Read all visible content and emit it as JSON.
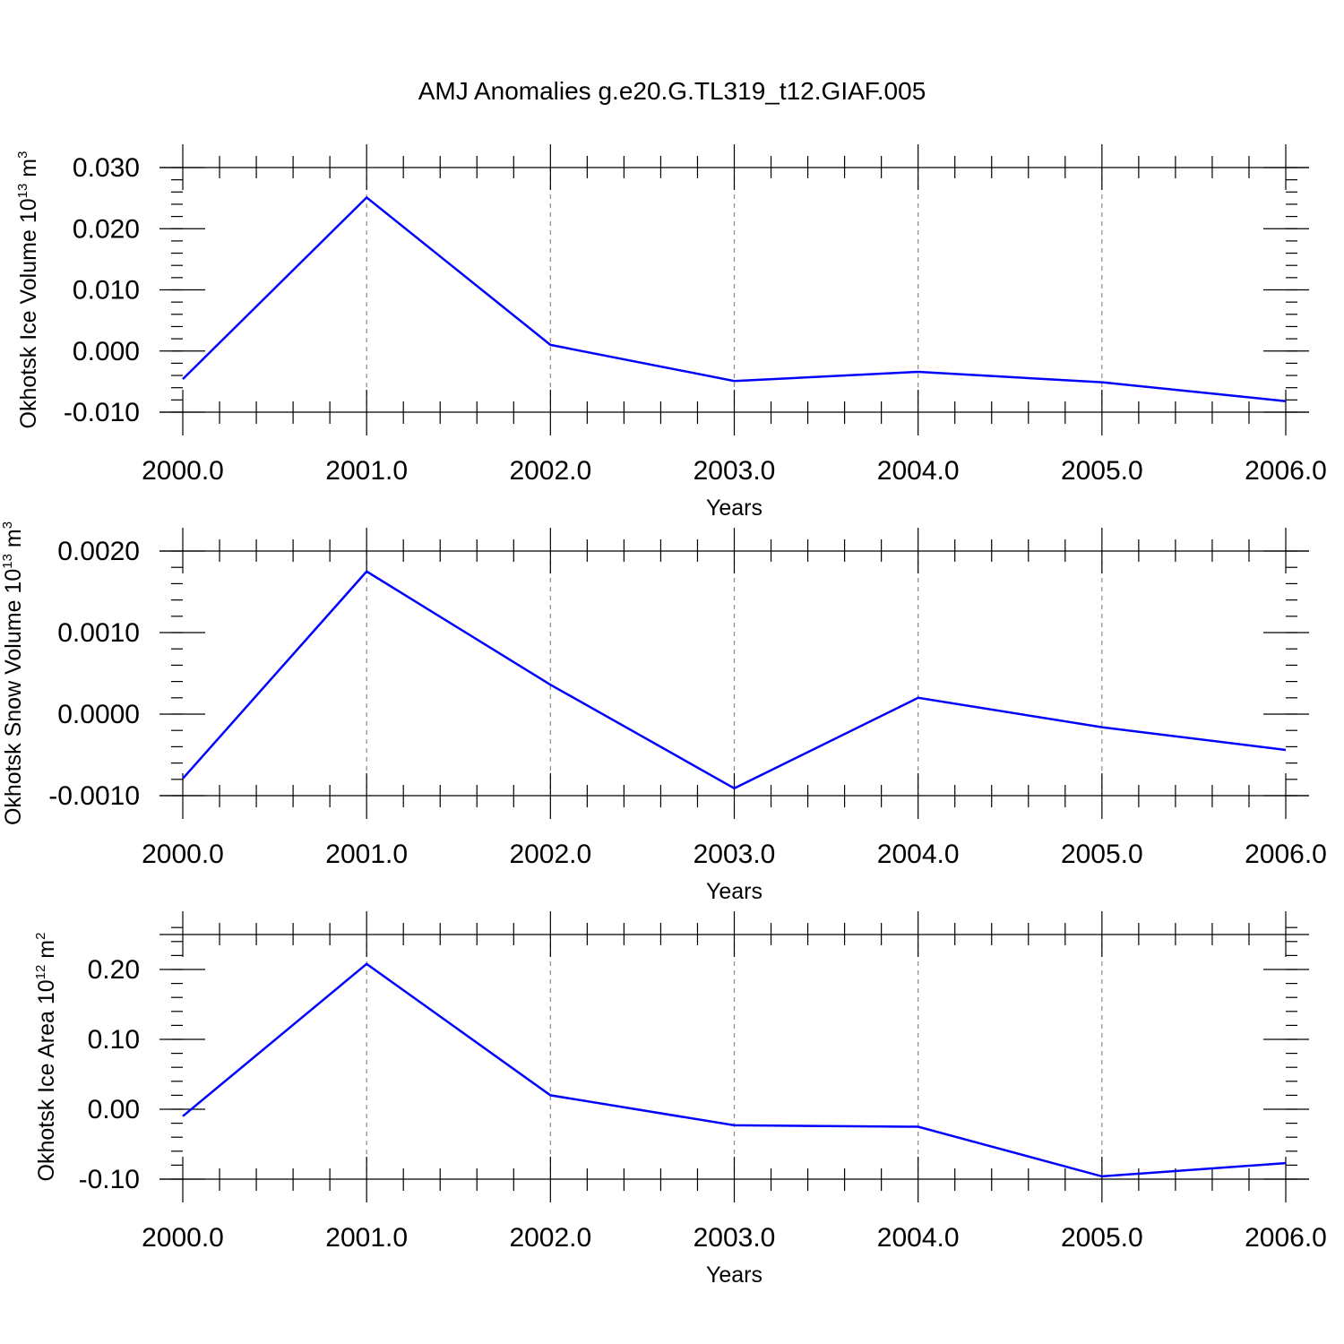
{
  "title": "AMJ Anomalies g.e20.G.TL319_t12.GIAF.005",
  "chart_data": [
    {
      "type": "line",
      "xlabel": "Years",
      "ylabel": {
        "base": "Okhotsk Ice Volume 10",
        "exp": "13",
        "unit": " m",
        "unit_exp": "3"
      },
      "x": [
        2000,
        2001,
        2002,
        2003,
        2004,
        2005,
        2006
      ],
      "x_tick_labels": [
        "2000.0",
        "2001.0",
        "2002.0",
        "2003.0",
        "2004.0",
        "2005.0",
        "2006.0"
      ],
      "xlim": [
        2000,
        2006
      ],
      "y_tick_values": [
        0.03,
        0.02,
        0.01,
        0.0,
        -0.01
      ],
      "y_tick_labels": [
        "0.030",
        "0.020",
        "0.010",
        "0.000",
        "-0.010"
      ],
      "ylim": [
        -0.01,
        0.03
      ],
      "y_minor_step": 0.002,
      "series": [
        {
          "values": [
            -0.0046,
            0.0251,
            0.001,
            -0.0049,
            -0.0034,
            -0.0051,
            -0.0082
          ]
        }
      ],
      "grid": "vertical dashed at each year",
      "color": "#0000ff"
    },
    {
      "type": "line",
      "xlabel": "Years",
      "ylabel": {
        "base": "Okhotsk Snow Volume 10",
        "exp": "13",
        "unit": " m",
        "unit_exp": "3"
      },
      "x": [
        2000,
        2001,
        2002,
        2003,
        2004,
        2005,
        2006
      ],
      "x_tick_labels": [
        "2000.0",
        "2001.0",
        "2002.0",
        "2003.0",
        "2004.0",
        "2005.0",
        "2006.0"
      ],
      "xlim": [
        2000,
        2006
      ],
      "y_tick_values": [
        0.002,
        0.001,
        0.0,
        -0.001
      ],
      "y_tick_labels": [
        "0.0020",
        "0.0010",
        "0.0000",
        "-0.0010"
      ],
      "ylim": [
        -0.001,
        0.002
      ],
      "y_minor_step": 0.0002,
      "series": [
        {
          "values": [
            -0.00079,
            0.00175,
            0.00036,
            -0.00091,
            0.0002,
            -0.00016,
            -0.00044
          ]
        }
      ],
      "grid": "vertical dashed at each year",
      "color": "#0000ff"
    },
    {
      "type": "line",
      "xlabel": "Years",
      "ylabel": {
        "base": "Okhotsk Ice Area 10",
        "exp": "12",
        "unit": " m",
        "unit_exp": "2"
      },
      "x": [
        2000,
        2001,
        2002,
        2003,
        2004,
        2005,
        2006
      ],
      "x_tick_labels": [
        "2000.0",
        "2001.0",
        "2002.0",
        "2003.0",
        "2004.0",
        "2005.0",
        "2006.0"
      ],
      "xlim": [
        2000,
        2006
      ],
      "y_tick_values": [
        0.2,
        0.1,
        0.0,
        -0.1
      ],
      "y_tick_labels": [
        "0.20",
        "0.10",
        "0.00",
        "-0.10"
      ],
      "ylim": [
        -0.1,
        0.25
      ],
      "y_minor_step": 0.02,
      "series": [
        {
          "values": [
            -0.01,
            0.208,
            0.02,
            -0.023,
            -0.025,
            -0.096,
            -0.077
          ]
        }
      ],
      "grid": "vertical dashed at each year",
      "color": "#0000ff"
    }
  ]
}
